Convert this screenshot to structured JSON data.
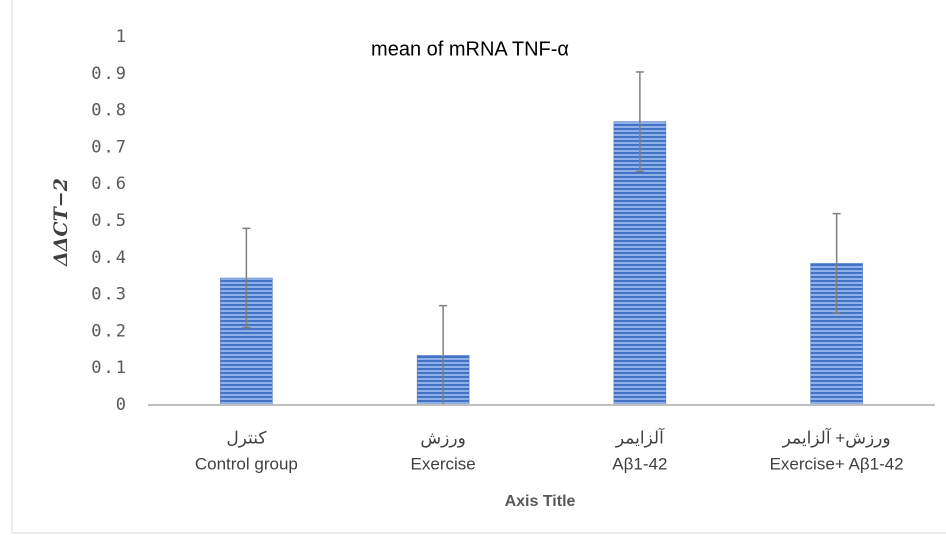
{
  "chart_data": {
    "type": "bar",
    "title": "mean of mRNA TNF-α",
    "x_label": "Axis Title",
    "y_label": "ΔΔCT−2",
    "categories": [
      [
        "کنترل",
        "Control group"
      ],
      [
        "ورزش",
        "Exercise"
      ],
      [
        "آلزایمر",
        "Aβ1-42"
      ],
      [
        "ورزش+ آلزایمر",
        "Exercise+ Aβ1-42"
      ]
    ],
    "values": [
      0.345,
      0.135,
      0.77,
      0.385
    ],
    "errors": [
      0.135,
      0.135,
      0.135,
      0.135
    ],
    "color": "#4472c4",
    "ylim": [
      0,
      1
    ],
    "yticks": [
      0,
      0.1,
      0.2,
      0.3,
      0.4,
      0.5,
      0.6,
      0.7,
      0.8,
      0.9,
      1
    ],
    "grid": false
  }
}
